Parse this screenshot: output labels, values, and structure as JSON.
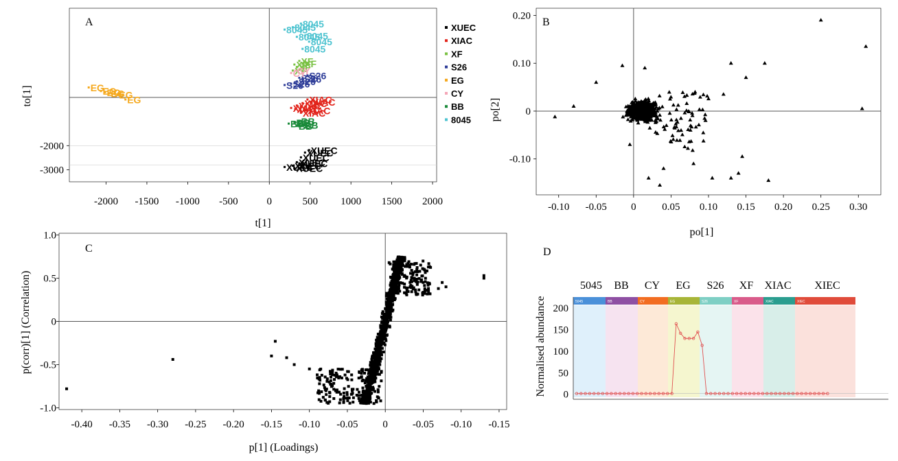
{
  "chart_data": [
    {
      "panel": "A",
      "type": "scatter",
      "xlabel": "t[1]",
      "ylabel": "to[1]",
      "xlim": [
        -2450,
        2050
      ],
      "ylim": [
        -3500,
        3700
      ],
      "x_ticks": [
        "-2000",
        "-1500",
        "-1000",
        "-500",
        "0",
        "500",
        "1000",
        "1500",
        "2000"
      ],
      "y_ticks": [
        "-2000",
        "-3000"
      ],
      "legend": {
        "placement": "right",
        "entries": [
          "XUEC",
          "XIAC",
          "XF",
          "S26",
          "EG",
          "CY",
          "BB",
          "8045"
        ]
      },
      "series": [
        {
          "name": "XUEC",
          "color": "#000000",
          "points": [
            [
              200,
              -2900
            ],
            [
              300,
              -2850
            ],
            [
              350,
              -2700
            ],
            [
              400,
              -2500
            ],
            [
              450,
              -2300
            ],
            [
              500,
              -2200
            ],
            [
              380,
              -2750
            ],
            [
              320,
              -2950
            ]
          ],
          "labels": [
            "XUEC",
            "XUEC",
            "XUEC",
            "XUEC",
            "XUEC",
            "XUEC",
            "XUEC",
            "XUEC"
          ]
        },
        {
          "name": "XIAC",
          "color": "#e2231a",
          "points": [
            [
              280,
              -450
            ],
            [
              350,
              -350
            ],
            [
              420,
              -250
            ],
            [
              480,
              -100
            ],
            [
              330,
              -500
            ],
            [
              400,
              -650
            ],
            [
              460,
              -550
            ],
            [
              520,
              -200
            ]
          ],
          "labels": [
            "XIAC",
            "XIAC",
            "XIAC",
            "XIAC",
            "XIAC",
            "XIAC",
            "XIAC",
            "XIAC"
          ]
        },
        {
          "name": "XF",
          "color": "#7ac143",
          "points": [
            [
              300,
              1100
            ],
            [
              350,
              1250
            ],
            [
              420,
              1400
            ],
            [
              380,
              1500
            ],
            [
              320,
              1350
            ]
          ],
          "labels": [
            "XF",
            "XF",
            "XF",
            "XF",
            "XF"
          ]
        },
        {
          "name": "S26",
          "color": "#2e3d98",
          "points": [
            [
              200,
              500
            ],
            [
              280,
              550
            ],
            [
              350,
              650
            ],
            [
              420,
              750
            ],
            [
              480,
              900
            ],
            [
              380,
              800
            ]
          ],
          "labels": [
            "S26",
            "S26",
            "S26",
            "S26",
            "S26",
            "S26"
          ]
        },
        {
          "name": "EG",
          "color": "#f5a81c",
          "points": [
            [
              -2200,
              400
            ],
            [
              -2050,
              250
            ],
            [
              -1950,
              150
            ],
            [
              -1850,
              100
            ],
            [
              -1750,
              -100
            ],
            [
              -2000,
              200
            ]
          ],
          "labels": [
            "EG",
            "EG",
            "EG",
            "EG",
            "EG",
            "EG"
          ]
        },
        {
          "name": "CY",
          "color": "#f4a6b7",
          "points": [
            [
              280,
              1000
            ],
            [
              330,
              1100
            ]
          ],
          "labels": [
            "CY",
            "CY"
          ]
        },
        {
          "name": "BB",
          "color": "#1a8a3a",
          "points": [
            [
              250,
              -1100
            ],
            [
              320,
              -1050
            ],
            [
              380,
              -1000
            ],
            [
              420,
              -1150
            ],
            [
              350,
              -1200
            ]
          ],
          "labels": [
            "BB",
            "BB",
            "BB",
            "BB",
            "BB"
          ]
        },
        {
          "name": "8045",
          "color": "#4dc3d0",
          "points": [
            [
              200,
              2800
            ],
            [
              300,
              2900
            ],
            [
              400,
              3050
            ],
            [
              450,
              2550
            ],
            [
              350,
              2500
            ],
            [
              500,
              2300
            ],
            [
              420,
              2000
            ]
          ],
          "labels": [
            "8045",
            "8045",
            "8045",
            "8045",
            "8045",
            "8045",
            "8045"
          ]
        }
      ],
      "label_cluster_text": [
        "8045",
        "8045",
        "8045",
        "8045",
        "S26",
        "S26",
        "EG",
        "EG",
        "EG",
        "EG",
        "XIAC",
        "XIAC",
        "BB",
        "XUEC",
        "XUEC",
        "XUEC"
      ]
    },
    {
      "panel": "B",
      "type": "scatter",
      "xlabel": "po[1]",
      "ylabel": "po[2]",
      "xlim": [
        -0.13,
        0.33
      ],
      "ylim": [
        -0.175,
        0.215
      ],
      "x_ticks": [
        "-0.10",
        "-0.05",
        "0",
        "0.05",
        "0.10",
        "0.15",
        "0.20",
        "0.25",
        "0.30"
      ],
      "y_ticks": [
        "0.20",
        "0.10",
        "0",
        "-0.10"
      ],
      "marker": "triangle",
      "outliers": [
        [
          0.25,
          0.19
        ],
        [
          0.31,
          0.135
        ],
        [
          0.305,
          0.005
        ],
        [
          0.175,
          0.1
        ],
        [
          0.13,
          0.1
        ],
        [
          0.15,
          0.07
        ],
        [
          0.12,
          0.035
        ],
        [
          -0.105,
          -0.012
        ],
        [
          -0.015,
          0.095
        ],
        [
          0.015,
          0.09
        ],
        [
          -0.05,
          0.06
        ],
        [
          0.18,
          -0.145
        ],
        [
          0.14,
          -0.13
        ],
        [
          0.13,
          -0.14
        ],
        [
          0.105,
          -0.14
        ],
        [
          0.02,
          -0.14
        ],
        [
          0.035,
          -0.155
        ],
        [
          -0.005,
          -0.07
        ],
        [
          0.04,
          -0.12
        ],
        [
          0.145,
          -0.095
        ],
        [
          0.08,
          -0.11
        ],
        [
          -0.08,
          0.01
        ]
      ]
    },
    {
      "panel": "C",
      "type": "scatter",
      "xlabel": "p[1] (Loadings)",
      "ylabel": "p(corr)[1] (Correlation)",
      "xlim": [
        -0.43,
        0.16
      ],
      "ylim": [
        -1.02,
        1.02
      ],
      "x_ticks": [
        "-0.40",
        "-0.35",
        "-0.30",
        "-0.25",
        "-0.20",
        "-0.15",
        "-0.10",
        "-0.05",
        "0",
        "-0.05",
        "-0.10",
        "-0.15"
      ],
      "y_ticks": [
        "1.0",
        "0.5",
        "0",
        "-0.5",
        "-1.0"
      ],
      "marker": "square",
      "outliers": [
        [
          -0.42,
          -0.78
        ],
        [
          -0.28,
          -0.44
        ],
        [
          -0.15,
          -0.4
        ],
        [
          -0.13,
          -0.42
        ],
        [
          -0.145,
          -0.23
        ],
        [
          -0.12,
          -0.5
        ],
        [
          -0.1,
          -0.55
        ],
        [
          0.13,
          0.53
        ],
        [
          0.13,
          0.5
        ],
        [
          0.075,
          0.45
        ],
        [
          0.08,
          0.4
        ],
        [
          0.07,
          0.38
        ]
      ]
    },
    {
      "panel": "D",
      "type": "line",
      "ylabel": "Normalised abundance",
      "ylim": [
        -10,
        205
      ],
      "y_ticks": [
        "200",
        "150",
        "100",
        "50",
        "0"
      ],
      "groups": [
        {
          "name": "5045",
          "bar_label": "5045",
          "color": "#4a90d9",
          "shade": "#dff0fb"
        },
        {
          "name": "BB",
          "bar_label": "BB",
          "color": "#8e4fa3",
          "shade": "#f6e3f0"
        },
        {
          "name": "CY",
          "bar_label": "CY",
          "color": "#f26d21",
          "shade": "#fde9d7"
        },
        {
          "name": "EG",
          "bar_label": "EG",
          "color": "#a7b537",
          "shade": "#f5f6cf"
        },
        {
          "name": "S26",
          "bar_label": "S26",
          "color": "#7ecfc4",
          "shade": "#e5f5f3"
        },
        {
          "name": "XF",
          "bar_label": "XF",
          "color": "#d95b8a",
          "shade": "#fbe2ea"
        },
        {
          "name": "XIAC",
          "bar_label": "XIAC",
          "color": "#2a9d8f",
          "shade": "#d8eee9"
        },
        {
          "name": "XIEC",
          "bar_label": "XIEC",
          "color": "#e04b3a",
          "shade": "#fbe1dc"
        }
      ],
      "values": [
        0,
        0,
        0,
        0,
        0,
        0,
        0,
        0,
        0,
        0,
        0,
        0,
        0,
        0,
        0,
        0,
        0,
        0,
        0,
        0,
        0,
        0,
        0,
        162,
        140,
        128,
        128,
        128,
        143,
        112,
        0,
        0,
        0,
        0,
        0,
        0,
        0,
        0,
        0,
        0,
        0,
        0,
        0,
        0,
        0,
        0,
        0,
        0,
        0,
        0,
        0,
        0,
        0,
        0,
        0,
        0,
        0,
        0,
        0
      ]
    }
  ],
  "panel_letters": {
    "a": "A",
    "b": "B",
    "c": "C",
    "d": "D"
  }
}
